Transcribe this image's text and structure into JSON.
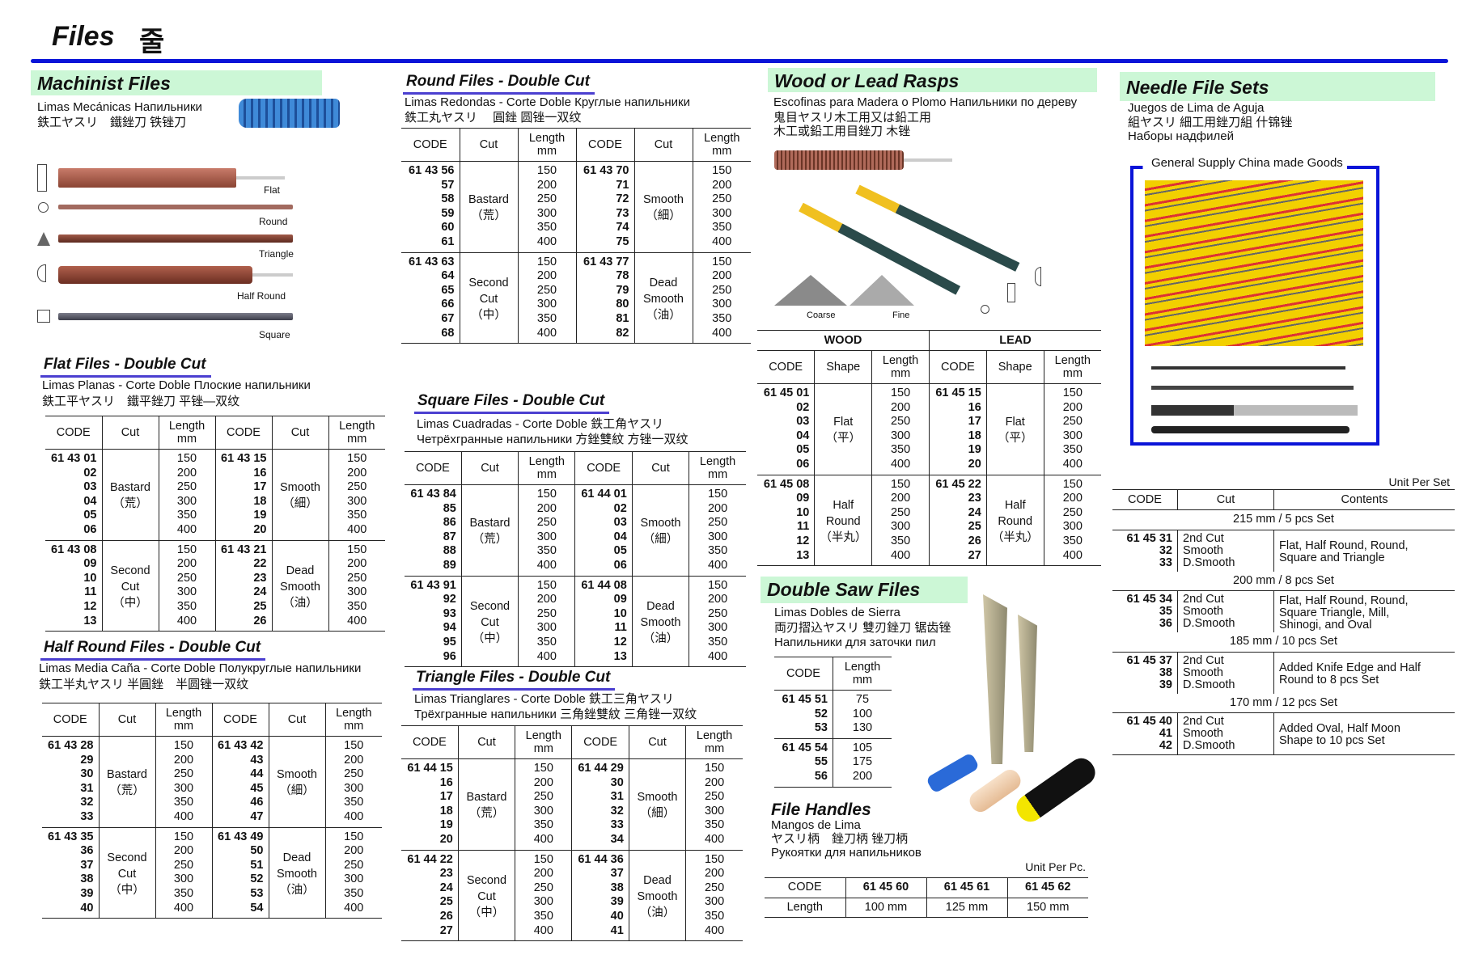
{
  "page": {
    "title": "Files",
    "title_ko": "줄"
  },
  "machinist": {
    "title": "Machinist Files",
    "lines": [
      "Limas Mecánicas Напильники",
      "鉄工ヤスリ　鐵銼刀 铁锉刀"
    ],
    "shapes": [
      "Flat",
      "Round",
      "Triangle",
      "Half Round",
      "Square"
    ]
  },
  "flat": {
    "title": "Flat Files - Double Cut",
    "lines": [
      "Limas Planas - Corte Doble Плоские напильники",
      "鉄工平ヤスリ　鐵平銼刀 平锉—双纹"
    ],
    "table": {
      "headers": [
        "CODE",
        "Cut",
        [
          "Length",
          "mm"
        ],
        "CODE",
        "Cut",
        [
          "Length",
          "mm"
        ]
      ],
      "groups": [
        [
          [
            "61 43 01",
            "02",
            "03",
            "04",
            "05",
            "06"
          ],
          {
            "m": [
              "Bastard",
              "（荒）"
            ]
          },
          [
            "150",
            "200",
            "250",
            "300",
            "350",
            "400"
          ],
          [
            "61 43 15",
            "16",
            "17",
            "18",
            "19",
            "20"
          ],
          {
            "m": [
              "Smooth",
              "（細）"
            ]
          },
          [
            "150",
            "200",
            "250",
            "300",
            "350",
            "400"
          ]
        ],
        [
          [
            "61 43 08",
            "09",
            "10",
            "11",
            "12",
            "13"
          ],
          {
            "m": [
              "Second",
              "Cut",
              "（中）"
            ]
          },
          [
            "150",
            "200",
            "250",
            "300",
            "350",
            "400"
          ],
          [
            "61 43 21",
            "22",
            "23",
            "24",
            "25",
            "26"
          ],
          {
            "m": [
              "Dead",
              "Smooth",
              "（油）"
            ]
          },
          [
            "150",
            "200",
            "250",
            "300",
            "350",
            "400"
          ]
        ]
      ]
    }
  },
  "half_round": {
    "title": "Half Round Files - Double Cut",
    "lines": [
      "Limas Media Caña - Corte Doble Полукруглые напильники",
      "鉄工半丸ヤスリ 半圓銼　半圆锉一双纹"
    ],
    "table": {
      "headers": [
        "CODE",
        "Cut",
        [
          "Length",
          "mm"
        ],
        "CODE",
        "Cut",
        [
          "Length",
          "mm"
        ]
      ],
      "groups": [
        [
          [
            "61 43 28",
            "29",
            "30",
            "31",
            "32",
            "33"
          ],
          {
            "m": [
              "Bastard",
              "（荒）"
            ]
          },
          [
            "150",
            "200",
            "250",
            "300",
            "350",
            "400"
          ],
          [
            "61 43 42",
            "43",
            "44",
            "45",
            "46",
            "47"
          ],
          {
            "m": [
              "Smooth",
              "（細）"
            ]
          },
          [
            "150",
            "200",
            "250",
            "300",
            "350",
            "400"
          ]
        ],
        [
          [
            "61 43 35",
            "36",
            "37",
            "38",
            "39",
            "40"
          ],
          {
            "m": [
              "Second",
              "Cut",
              "（中）"
            ]
          },
          [
            "150",
            "200",
            "250",
            "300",
            "350",
            "400"
          ],
          [
            "61 43 49",
            "50",
            "51",
            "52",
            "53",
            "54"
          ],
          {
            "m": [
              "Dead",
              "Smooth",
              "（油）"
            ]
          },
          [
            "150",
            "200",
            "250",
            "300",
            "350",
            "400"
          ]
        ]
      ]
    }
  },
  "round": {
    "title": "Round Files - Double Cut",
    "lines": [
      "Limas Redondas - Corte Doble  Круглые напильники",
      "鉄工丸ヤスリ　 圓銼  圆锉一双纹"
    ],
    "table": {
      "headers": [
        "CODE",
        "Cut",
        [
          "Length",
          "mm"
        ],
        "CODE",
        "Cut",
        [
          "Length",
          "mm"
        ]
      ],
      "groups": [
        [
          [
            "61 43 56",
            "57",
            "58",
            "59",
            "60",
            "61"
          ],
          {
            "m": [
              "Bastard",
              "（荒）"
            ]
          },
          [
            "150",
            "200",
            "250",
            "300",
            "350",
            "400"
          ],
          [
            "61 43 70",
            "71",
            "72",
            "73",
            "74",
            "75"
          ],
          {
            "m": [
              "Smooth",
              "（細）"
            ]
          },
          [
            "150",
            "200",
            "250",
            "300",
            "350",
            "400"
          ]
        ],
        [
          [
            "61 43 63",
            "64",
            "65",
            "66",
            "67",
            "68"
          ],
          {
            "m": [
              "Second",
              "Cut",
              "（中）"
            ]
          },
          [
            "150",
            "200",
            "250",
            "300",
            "350",
            "400"
          ],
          [
            "61 43 77",
            "78",
            "79",
            "80",
            "81",
            "82"
          ],
          {
            "m": [
              "Dead",
              "Smooth",
              "（油）"
            ]
          },
          [
            "150",
            "200",
            "250",
            "300",
            "350",
            "400"
          ]
        ]
      ]
    }
  },
  "square": {
    "title": "Square Files - Double Cut",
    "lines": [
      "Limas Cuadradas - Corte Doble 鉄工角ヤスリ",
      "Четрёхгранные напильники 方銼雙紋  方锉一双纹"
    ],
    "table": {
      "headers": [
        "CODE",
        "Cut",
        [
          "Length",
          "mm"
        ],
        "CODE",
        "Cut",
        [
          "Length",
          "mm"
        ]
      ],
      "groups": [
        [
          [
            "61 43 84",
            "85",
            "86",
            "87",
            "88",
            "89"
          ],
          {
            "m": [
              "Bastard",
              "（荒）"
            ]
          },
          [
            "150",
            "200",
            "250",
            "300",
            "350",
            "400"
          ],
          [
            "61 44 01",
            "02",
            "03",
            "04",
            "05",
            "06"
          ],
          {
            "m": [
              "Smooth",
              "（細）"
            ]
          },
          [
            "150",
            "200",
            "250",
            "300",
            "350",
            "400"
          ]
        ],
        [
          [
            "61 43 91",
            "92",
            "93",
            "94",
            "95",
            "96"
          ],
          {
            "m": [
              "Second",
              "Cut",
              "（中）"
            ]
          },
          [
            "150",
            "200",
            "250",
            "300",
            "350",
            "400"
          ],
          [
            "61 44 08",
            "09",
            "10",
            "11",
            "12",
            "13"
          ],
          {
            "m": [
              "Dead",
              "Smooth",
              "（油）"
            ]
          },
          [
            "150",
            "200",
            "250",
            "300",
            "350",
            "400"
          ]
        ]
      ]
    }
  },
  "triangle": {
    "title": "Triangle Files - Double Cut",
    "lines": [
      "Limas Trianglares - Corte Doble 鉄工三角ヤスリ",
      "Трёхгранные напильники 三角銼雙紋 三角锉一双纹"
    ],
    "table": {
      "headers": [
        "CODE",
        "Cut",
        [
          "Length",
          "mm"
        ],
        "CODE",
        "Cut",
        [
          "Length",
          "mm"
        ]
      ],
      "groups": [
        [
          [
            "61 44 15",
            "16",
            "17",
            "18",
            "19",
            "20"
          ],
          {
            "m": [
              "Bastard",
              "（荒）"
            ]
          },
          [
            "150",
            "200",
            "250",
            "300",
            "350",
            "400"
          ],
          [
            "61 44 29",
            "30",
            "31",
            "32",
            "33",
            "34"
          ],
          {
            "m": [
              "Smooth",
              "（細）"
            ]
          },
          [
            "150",
            "200",
            "250",
            "300",
            "350",
            "400"
          ]
        ],
        [
          [
            "61 44 22",
            "23",
            "24",
            "25",
            "26",
            "27"
          ],
          {
            "m": [
              "Second",
              "Cut",
              "（中）"
            ]
          },
          [
            "150",
            "200",
            "250",
            "300",
            "350",
            "400"
          ],
          [
            "61 44 36",
            "37",
            "38",
            "39",
            "40",
            "41"
          ],
          {
            "m": [
              "Dead",
              "Smooth",
              "（油）"
            ]
          },
          [
            "150",
            "200",
            "250",
            "300",
            "350",
            "400"
          ]
        ]
      ]
    }
  },
  "rasps": {
    "title": "Wood or Lead Rasps",
    "lines": [
      "Escofinas para Madera o Plomo Напильники по дереву",
      "鬼目ヤスリ木工用又は鉛工用",
      "木工或鉛工用目銼刀 木锉"
    ],
    "texture_labels": [
      "Coarse",
      "Fine"
    ],
    "table": {
      "super": [
        "WOOD",
        "LEAD"
      ],
      "headers": [
        "CODE",
        "Shape",
        [
          "Length",
          "mm"
        ],
        "CODE",
        "Shape",
        [
          "Length",
          "mm"
        ]
      ],
      "groups": [
        [
          [
            "61 45 01",
            "02",
            "03",
            "04",
            "05",
            "06"
          ],
          {
            "m": [
              "Flat",
              "（平）"
            ]
          },
          [
            "150",
            "200",
            "250",
            "300",
            "350",
            "400"
          ],
          [
            "61 45 15",
            "16",
            "17",
            "18",
            "19",
            "20"
          ],
          {
            "m": [
              "Flat",
              "（平）"
            ]
          },
          [
            "150",
            "200",
            "250",
            "300",
            "350",
            "400"
          ]
        ],
        [
          [
            "61 45 08",
            "09",
            "10",
            "11",
            "12",
            "13"
          ],
          {
            "m": [
              "Half",
              "Round",
              "（半丸）"
            ]
          },
          [
            "150",
            "200",
            "250",
            "300",
            "350",
            "400"
          ],
          [
            "61 45 22",
            "23",
            "24",
            "25",
            "26",
            "27"
          ],
          {
            "m": [
              "Half",
              "Round",
              "（半丸）"
            ]
          },
          [
            "150",
            "200",
            "250",
            "300",
            "350",
            "400"
          ]
        ]
      ]
    }
  },
  "saw": {
    "title": "Double Saw Files",
    "lines": [
      "Limas Dobles de Sierra",
      "両刃摺込ヤスリ 雙刃銼刀 锯齿锉",
      "Напильники для заточки пил"
    ],
    "table": {
      "headers": [
        "CODE",
        [
          "Length",
          "mm"
        ]
      ],
      "groups": [
        [
          [
            "61 45 51",
            "52",
            "53"
          ],
          [
            "75",
            "100",
            "130"
          ]
        ],
        [
          [
            "61 45 54",
            "55",
            "56"
          ],
          [
            "105",
            "175",
            "200"
          ]
        ]
      ]
    }
  },
  "handles": {
    "title": "File Handles",
    "lines": [
      "Mangos de Lima",
      "ヤスリ柄　銼刀柄 锉刀柄",
      "Рукоятки для напильников"
    ],
    "unit": "Unit Per Pc.",
    "rows": [
      [
        "CODE",
        "61 45 60",
        "61 45 61",
        "61 45 62"
      ],
      [
        "Length",
        "100 mm",
        "125 mm",
        "150 mm"
      ]
    ]
  },
  "needle": {
    "title": "Needle File Sets",
    "lines": [
      "Juegos de Lima de Aguja",
      "組ヤスリ 細工用銼刀組 什锦锉",
      "Наборы надфилей"
    ],
    "caption": "General Supply China made Goods",
    "unit": "Unit Per Set",
    "headers": [
      "CODE",
      "Cut",
      "Contents"
    ],
    "sets": [
      {
        "title": "215 mm / 5 pcs Set",
        "codes": [
          "61 45 31",
          "32",
          "33"
        ],
        "cuts": [
          "2nd Cut",
          "Smooth",
          "D.Smooth"
        ],
        "contents": [
          "Flat, Half Round, Round,",
          "Square and Triangle"
        ]
      },
      {
        "title": "200 mm / 8 pcs Set",
        "codes": [
          "61 45 34",
          "35",
          "36"
        ],
        "cuts": [
          "2nd Cut",
          "Smooth",
          "D.Smooth"
        ],
        "contents": [
          "Flat, Half Round, Round,",
          "Square Triangle, Mill,",
          "Shinogi, and Oval"
        ]
      },
      {
        "title": "185 mm / 10 pcs Set",
        "codes": [
          "61 45 37",
          "38",
          "39"
        ],
        "cuts": [
          "2nd Cut",
          "Smooth",
          "D.Smooth"
        ],
        "contents": [
          "Added Knife Edge and Half",
          "Round to 8 pcs Set"
        ]
      },
      {
        "title": "170 mm / 12 pcs Set",
        "codes": [
          "61 45 40",
          "41",
          "42"
        ],
        "cuts": [
          "2nd Cut",
          "Smooth",
          "D.Smooth"
        ],
        "contents": [
          "Added Oval, Half Moon",
          "Shape to 10 pcs Set"
        ]
      }
    ]
  },
  "colors": {
    "rule": "#0a14d8",
    "band": "#ccf7d6",
    "underline": "#4b3fd0"
  }
}
